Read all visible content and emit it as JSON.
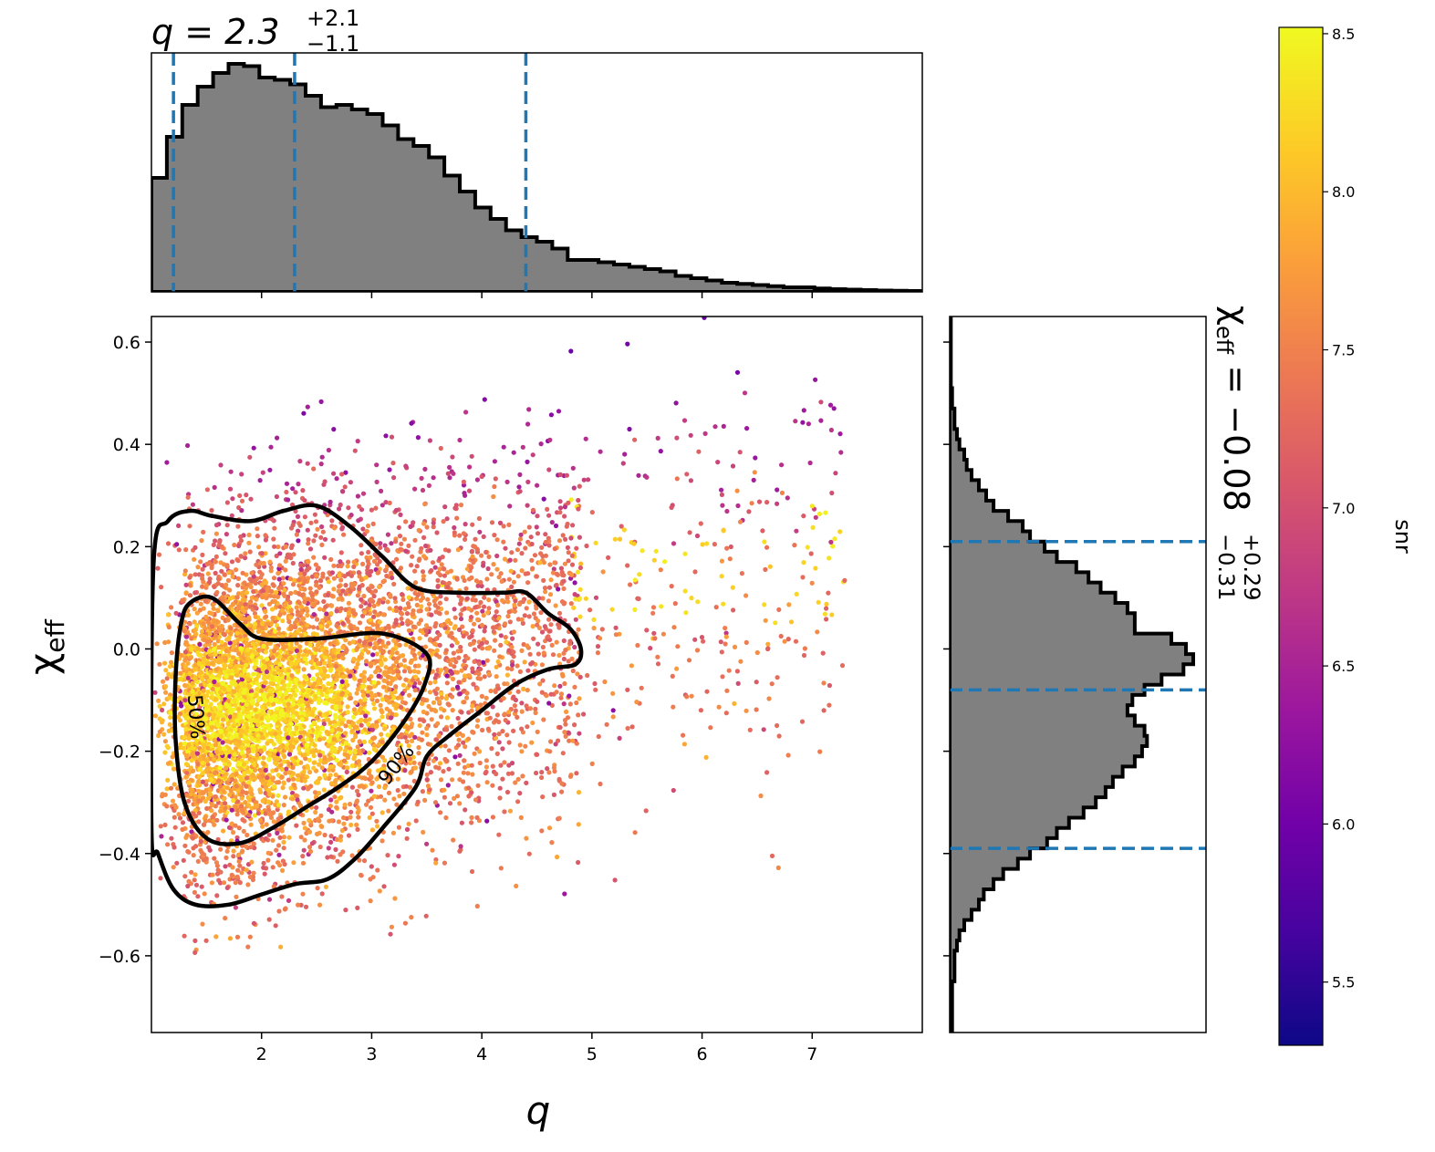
{
  "chart_data": {
    "type": "scatter",
    "x_label": "q",
    "y_label_base": "χ",
    "y_label_sub": "eff",
    "x_ticks": [
      "2",
      "3",
      "4",
      "5",
      "6",
      "7"
    ],
    "y_ticks": [
      "0.6",
      "0.4",
      "0.2",
      "0.0",
      "−0.2",
      "−0.4",
      "−0.6"
    ],
    "xlim": [
      1.0,
      8.0
    ],
    "ylim": [
      -0.75,
      0.65
    ],
    "q_summary": {
      "label": "q = 2.3",
      "plus": "+2.1",
      "minus": "−1.1",
      "median": 2.3,
      "lower": 1.2,
      "upper": 4.4
    },
    "chi_summary": {
      "label": "χ",
      "sub": "eff",
      "eq": " = −0.08",
      "plus": "+0.29",
      "minus": "−0.31",
      "median": -0.08,
      "lower": -0.39,
      "upper": 0.21
    },
    "q_hist": {
      "bin_start": 1.0,
      "bin_width": 0.14,
      "counts": [
        0.5,
        0.68,
        0.82,
        0.9,
        0.96,
        1.0,
        0.99,
        0.94,
        0.93,
        0.91,
        0.86,
        0.81,
        0.82,
        0.8,
        0.78,
        0.73,
        0.67,
        0.64,
        0.59,
        0.51,
        0.44,
        0.37,
        0.32,
        0.27,
        0.24,
        0.22,
        0.19,
        0.14,
        0.14,
        0.13,
        0.12,
        0.11,
        0.1,
        0.09,
        0.07,
        0.06,
        0.05,
        0.04,
        0.035,
        0.03,
        0.025,
        0.02,
        0.02,
        0.015,
        0.012,
        0.01,
        0.008,
        0.006,
        0.005,
        0.004
      ]
    },
    "chi_hist": {
      "bin_start": -0.75,
      "bin_width": 0.02,
      "counts": [
        0.01,
        0.01,
        0.01,
        0.01,
        0.01,
        0.02,
        0.02,
        0.02,
        0.03,
        0.04,
        0.06,
        0.09,
        0.12,
        0.14,
        0.18,
        0.22,
        0.28,
        0.33,
        0.4,
        0.44,
        0.49,
        0.55,
        0.6,
        0.64,
        0.67,
        0.71,
        0.76,
        0.79,
        0.81,
        0.8,
        0.76,
        0.73,
        0.75,
        0.8,
        0.87,
        0.96,
        1.0,
        0.97,
        0.91,
        0.76,
        0.76,
        0.73,
        0.68,
        0.62,
        0.57,
        0.52,
        0.44,
        0.39,
        0.33,
        0.3,
        0.24,
        0.18,
        0.15,
        0.12,
        0.09,
        0.07,
        0.06,
        0.04,
        0.03,
        0.02,
        0.02,
        0.01,
        0.01,
        0.005,
        0.005,
        0.005,
        0.005,
        0.005,
        0.005,
        0.005
      ]
    },
    "contours": [
      {
        "label": "50%",
        "points": [
          [
            1.35,
            0.09
          ],
          [
            1.55,
            0.1
          ],
          [
            1.8,
            0.05
          ],
          [
            2.0,
            0.02
          ],
          [
            2.5,
            0.02
          ],
          [
            3.1,
            0.03
          ],
          [
            3.5,
            -0.01
          ],
          [
            3.48,
            -0.07
          ],
          [
            3.3,
            -0.14
          ],
          [
            3.0,
            -0.22
          ],
          [
            2.7,
            -0.27
          ],
          [
            2.4,
            -0.31
          ],
          [
            2.1,
            -0.35
          ],
          [
            1.8,
            -0.38
          ],
          [
            1.5,
            -0.37
          ],
          [
            1.3,
            -0.3
          ],
          [
            1.22,
            -0.18
          ],
          [
            1.22,
            -0.05
          ],
          [
            1.27,
            0.05
          ]
        ]
      },
      {
        "label": "90%",
        "points": [
          [
            1.02,
            0.17
          ],
          [
            1.15,
            0.25
          ],
          [
            1.35,
            0.27
          ],
          [
            1.55,
            0.26
          ],
          [
            1.9,
            0.25
          ],
          [
            2.2,
            0.27
          ],
          [
            2.5,
            0.28
          ],
          [
            2.8,
            0.24
          ],
          [
            3.1,
            0.18
          ],
          [
            3.4,
            0.12
          ],
          [
            3.8,
            0.11
          ],
          [
            4.2,
            0.11
          ],
          [
            4.4,
            0.11
          ],
          [
            4.6,
            0.07
          ],
          [
            4.8,
            0.04
          ],
          [
            4.9,
            0.0
          ],
          [
            4.85,
            -0.03
          ],
          [
            4.6,
            -0.04
          ],
          [
            4.3,
            -0.07
          ],
          [
            4.0,
            -0.12
          ],
          [
            3.7,
            -0.17
          ],
          [
            3.5,
            -0.21
          ],
          [
            3.4,
            -0.27
          ],
          [
            3.1,
            -0.35
          ],
          [
            2.85,
            -0.41
          ],
          [
            2.6,
            -0.45
          ],
          [
            2.3,
            -0.46
          ],
          [
            2.0,
            -0.48
          ],
          [
            1.7,
            -0.5
          ],
          [
            1.4,
            -0.5
          ],
          [
            1.2,
            -0.47
          ],
          [
            1.06,
            -0.4
          ],
          [
            1.0,
            -0.35
          ]
        ]
      }
    ],
    "colorbar": {
      "label": "snr",
      "ticks": [
        "8.5",
        "8.0",
        "7.5",
        "7.0",
        "6.5",
        "6.0",
        "5.5"
      ],
      "range": [
        5.3,
        8.52
      ],
      "colors": [
        "#0d0887",
        "#46039f",
        "#7201a8",
        "#9c179e",
        "#bd3786",
        "#d8576b",
        "#ed7953",
        "#fb9f3a",
        "#fdca26",
        "#f0f921"
      ]
    },
    "dashed_color": "#1f77b4",
    "hist_fill": "#808080"
  }
}
